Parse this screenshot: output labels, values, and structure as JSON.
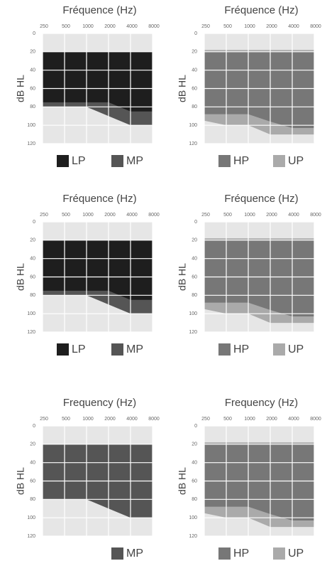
{
  "chart_data": [
    {
      "type": "area",
      "title": "Fréquence (Hz)",
      "ylabel": "dB HL",
      "categories": [
        250,
        500,
        1000,
        2000,
        4000,
        8000
      ],
      "ylim": [
        0,
        120
      ],
      "y_inverted": true,
      "yticks": [
        0,
        20,
        40,
        60,
        80,
        100,
        120
      ],
      "grid": true,
      "series": [
        {
          "name": "LP",
          "color": "#1e1e1e",
          "top": [
            20,
            20,
            20,
            20,
            20,
            20
          ],
          "bottom": [
            75,
            75,
            75,
            75,
            85,
            85
          ]
        },
        {
          "name": "MP",
          "color": "#555555",
          "top": [
            20,
            20,
            20,
            20,
            20,
            20
          ],
          "bottom": [
            80,
            80,
            80,
            90,
            100,
            100
          ]
        }
      ]
    },
    {
      "type": "area",
      "title": "Fréquence (Hz)",
      "ylabel": "dB HL",
      "categories": [
        250,
        500,
        1000,
        2000,
        4000,
        8000
      ],
      "ylim": [
        0,
        120
      ],
      "y_inverted": true,
      "yticks": [
        0,
        20,
        40,
        60,
        80,
        100,
        120
      ],
      "grid": true,
      "series": [
        {
          "name": "HP",
          "color": "#777777",
          "top": [
            20,
            20,
            20,
            20,
            20,
            20
          ],
          "bottom": [
            88,
            88,
            88,
            96,
            103,
            103
          ]
        },
        {
          "name": "UP",
          "color": "#aaaaaa",
          "top": [
            18,
            18,
            18,
            18,
            18,
            18
          ],
          "bottom": [
            95,
            100,
            100,
            110,
            110,
            110
          ]
        }
      ]
    },
    {
      "type": "area",
      "title": "Fréquence (Hz)",
      "ylabel": "dB HL",
      "categories": [
        250,
        500,
        1000,
        2000,
        4000,
        8000
      ],
      "ylim": [
        0,
        120
      ],
      "y_inverted": true,
      "yticks": [
        0,
        20,
        40,
        60,
        80,
        100,
        120
      ],
      "grid": true,
      "series": [
        {
          "name": "LP",
          "color": "#1e1e1e",
          "top": [
            20,
            20,
            20,
            20,
            20,
            20
          ],
          "bottom": [
            75,
            75,
            75,
            75,
            85,
            85
          ]
        },
        {
          "name": "MP",
          "color": "#555555",
          "top": [
            20,
            20,
            20,
            20,
            20,
            20
          ],
          "bottom": [
            80,
            80,
            80,
            90,
            100,
            100
          ]
        }
      ]
    },
    {
      "type": "area",
      "title": "Fréquence (Hz)",
      "ylabel": "dB HL",
      "categories": [
        250,
        500,
        1000,
        2000,
        4000,
        8000
      ],
      "ylim": [
        0,
        120
      ],
      "y_inverted": true,
      "yticks": [
        0,
        20,
        40,
        60,
        80,
        100,
        120
      ],
      "grid": true,
      "series": [
        {
          "name": "HP",
          "color": "#777777",
          "top": [
            20,
            20,
            20,
            20,
            20,
            20
          ],
          "bottom": [
            88,
            88,
            88,
            96,
            103,
            103
          ]
        },
        {
          "name": "UP",
          "color": "#aaaaaa",
          "top": [
            18,
            18,
            18,
            18,
            18,
            18
          ],
          "bottom": [
            95,
            100,
            100,
            110,
            110,
            110
          ]
        }
      ]
    },
    {
      "type": "area",
      "title": "Frequency (Hz)",
      "ylabel": "dB HL",
      "categories": [
        250,
        500,
        1000,
        2000,
        4000,
        8000
      ],
      "ylim": [
        0,
        120
      ],
      "y_inverted": true,
      "yticks": [
        0,
        20,
        40,
        60,
        80,
        100,
        120
      ],
      "grid": true,
      "series": [
        {
          "name": "MP",
          "color": "#555555",
          "top": [
            20,
            20,
            20,
            20,
            20,
            20
          ],
          "bottom": [
            80,
            80,
            80,
            90,
            100,
            100
          ]
        }
      ]
    },
    {
      "type": "area",
      "title": "Frequency (Hz)",
      "ylabel": "dB HL",
      "categories": [
        250,
        500,
        1000,
        2000,
        4000,
        8000
      ],
      "ylim": [
        0,
        120
      ],
      "y_inverted": true,
      "yticks": [
        0,
        20,
        40,
        60,
        80,
        100,
        120
      ],
      "grid": true,
      "series": [
        {
          "name": "HP",
          "color": "#777777",
          "top": [
            20,
            20,
            20,
            20,
            20,
            20
          ],
          "bottom": [
            88,
            88,
            88,
            96,
            103,
            103
          ]
        },
        {
          "name": "UP",
          "color": "#aaaaaa",
          "top": [
            18,
            18,
            18,
            18,
            18,
            18
          ],
          "bottom": [
            95,
            100,
            100,
            110,
            110,
            110
          ]
        }
      ]
    }
  ]
}
